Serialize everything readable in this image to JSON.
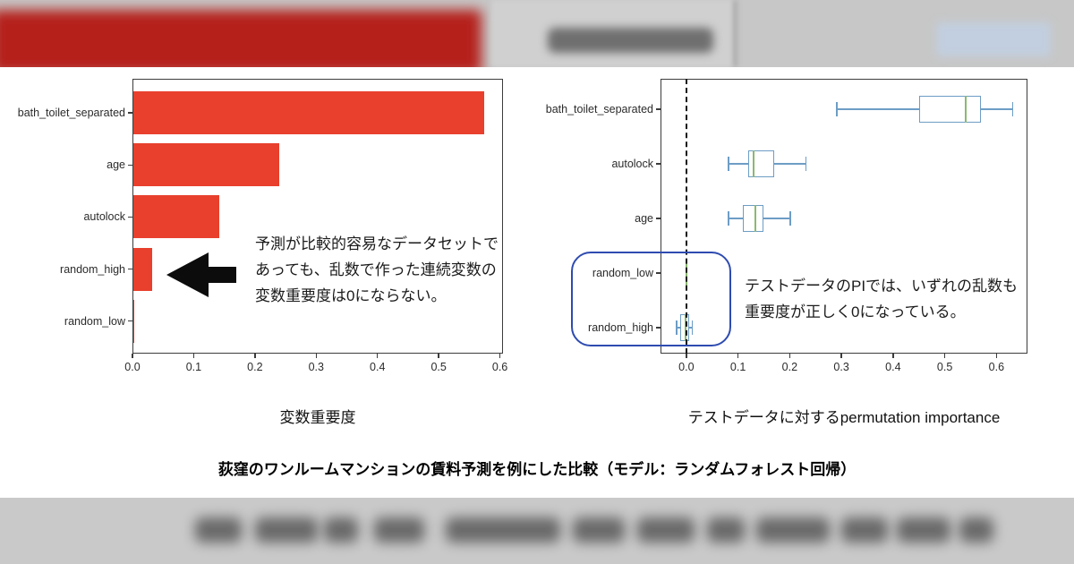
{
  "decor": {
    "header_background": "#c7c7c7",
    "header_red_banner_color": "#b5201b",
    "header_text_blob_color": "#6f6f6f",
    "header_blue_chip_color": "#c2cfe0",
    "footer_background": "#c9c9c9",
    "footer_text_blob_color": "#4a4a4a"
  },
  "chart_data": [
    {
      "type": "bar",
      "title": "変数重要度",
      "categories": [
        "bath_toilet_separated",
        "age",
        "autolock",
        "random_high",
        "random_low"
      ],
      "values": [
        0.575,
        0.24,
        0.142,
        0.032,
        0.002
      ],
      "xlabel": "",
      "ylabel": "",
      "xlim": [
        0,
        0.605
      ],
      "xticks": [
        0.0,
        0.1,
        0.2,
        0.3,
        0.4,
        0.5,
        0.6
      ],
      "xtick_labels": [
        "0.0",
        "0.1",
        "0.2",
        "0.3",
        "0.4",
        "0.5",
        "0.6"
      ],
      "grid": false,
      "bar_color": "#e8402d",
      "annotation_lines": [
        "予測が比較的容易なデータセットで",
        "あっても、乱数で作った連続変数の",
        "変数重要度は0にならない。"
      ],
      "arrow": "black-left-arrow pointing at random_high bar"
    },
    {
      "type": "boxplot",
      "title": "テストデータに対するpermutation importance",
      "categories": [
        "bath_toilet_separated",
        "autolock",
        "age",
        "random_low",
        "random_high"
      ],
      "boxes": [
        {
          "whislo": 0.29,
          "q1": 0.45,
          "med": 0.54,
          "q3": 0.57,
          "whishi": 0.63
        },
        {
          "whislo": 0.08,
          "q1": 0.12,
          "med": 0.13,
          "q3": 0.17,
          "whishi": 0.23
        },
        {
          "whislo": 0.08,
          "q1": 0.11,
          "med": 0.134,
          "q3": 0.15,
          "whishi": 0.2
        },
        {
          "whislo": 0.0,
          "q1": 0.0,
          "med": 0.0,
          "q3": 0.0,
          "whishi": 0.0
        },
        {
          "whislo": -0.02,
          "q1": -0.012,
          "med": -0.002,
          "q3": 0.005,
          "whishi": 0.01
        }
      ],
      "xlim": [
        -0.05,
        0.66
      ],
      "xticks": [
        0.0,
        0.1,
        0.2,
        0.3,
        0.4,
        0.5,
        0.6
      ],
      "xtick_labels": [
        "0.0",
        "0.1",
        "0.2",
        "0.3",
        "0.4",
        "0.5",
        "0.6"
      ],
      "zero_line": true,
      "grid": false,
      "box_color": "#6d9dc5",
      "median_color": "#8ab96f",
      "highlight_box_color": "#2e4bb0",
      "highlighted_categories": [
        "random_low",
        "random_high"
      ],
      "annotation_lines": [
        "テストデータのPIでは、いずれの乱数も",
        "重要度が正しく0になっている。"
      ]
    }
  ],
  "caption": "荻窪のワンルームマンションの賃料予測を例にした比較（モデル：ランダムフォレスト回帰）"
}
